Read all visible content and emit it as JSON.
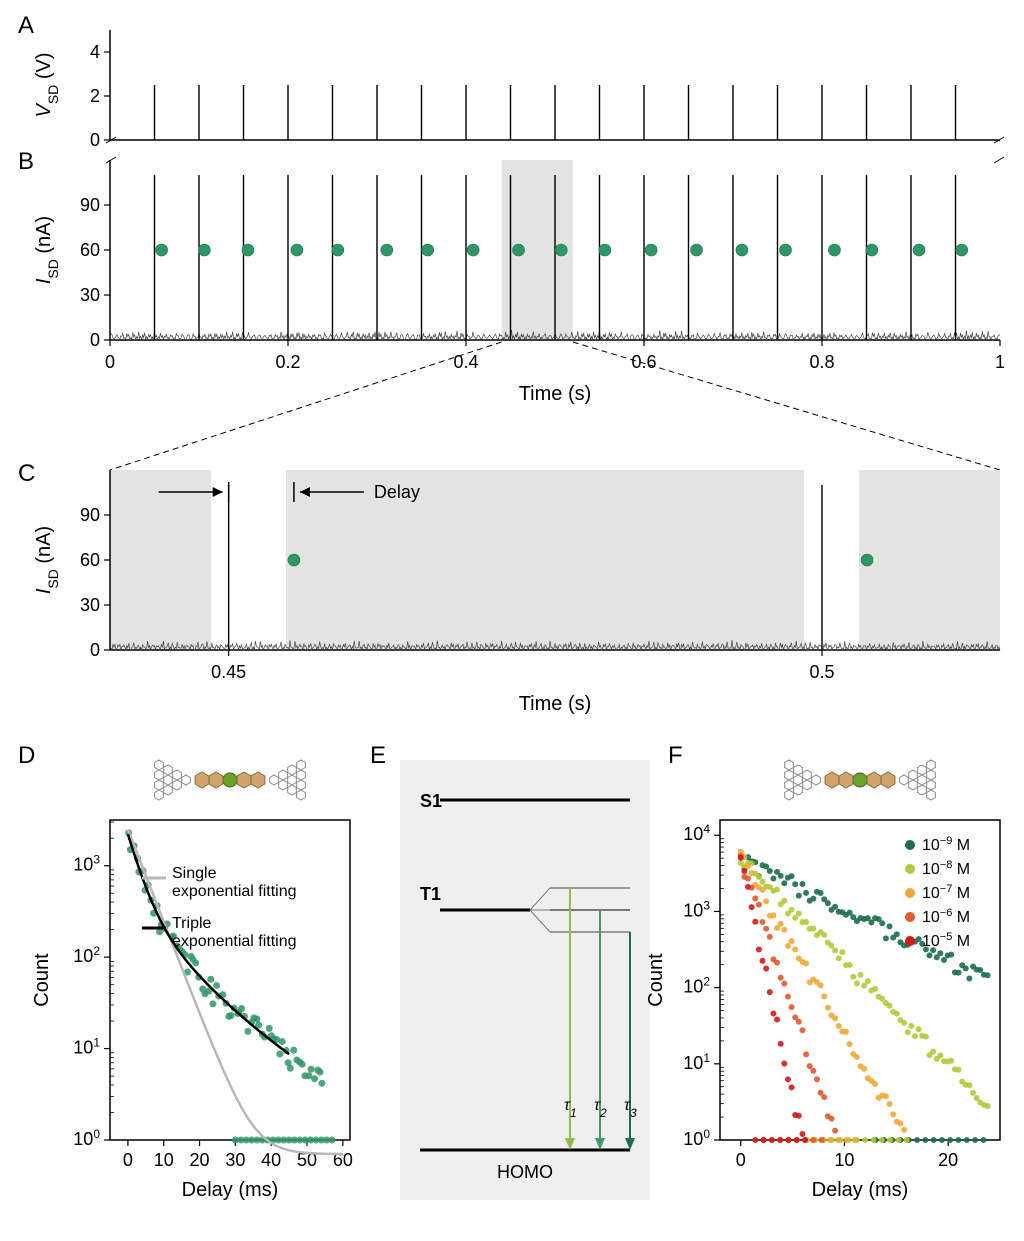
{
  "panels": {
    "A": {
      "label": "A"
    },
    "B": {
      "label": "B"
    },
    "C": {
      "label": "C"
    },
    "D": {
      "label": "D"
    },
    "E": {
      "label": "E"
    },
    "F": {
      "label": "F"
    }
  },
  "colors": {
    "background": "#ffffff",
    "axis": "#000000",
    "noise": "#444444",
    "green_dot": "#2f9767",
    "green_dot_stroke": "#1f7350",
    "highlight_band": "#e3e3e3",
    "panelE_bg": "#efefef",
    "single_fit": "#b8b8b8",
    "triple_fit": "#000000",
    "tau1": "#8fbf4a",
    "tau2": "#3f9a6a",
    "tau3": "#1a6e4a",
    "hex_tan": "#cfa36a",
    "hex_outline": "#888888",
    "hex_green": "#6aa32b",
    "series_1e9": "#1a6e4a",
    "series_1e8": "#b5c93a",
    "series_1e7": "#f0a83a",
    "series_1e6": "#e05a2a",
    "series_1e5": "#d11a1a"
  },
  "panelA": {
    "ylabel": "V",
    "ylabel_sub": "SD",
    "ylabel_unit": " (V)",
    "yticks": [
      0,
      2,
      4
    ],
    "pulse_times": [
      0.05,
      0.1,
      0.15,
      0.2,
      0.25,
      0.3,
      0.35,
      0.4,
      0.45,
      0.5,
      0.55,
      0.6,
      0.65,
      0.7,
      0.75,
      0.8,
      0.85,
      0.9,
      0.95
    ],
    "pulse_height": 2.5,
    "xlim": [
      0,
      1
    ]
  },
  "panelB": {
    "ylabel": "I",
    "ylabel_sub": "SD",
    "ylabel_unit": " (nA)",
    "yticks": [
      0,
      30,
      60,
      90
    ],
    "xlabel": "Time (s)",
    "xticks": [
      0,
      0.2,
      0.4,
      0.6,
      0.8,
      1
    ],
    "pulse_times": [
      0.05,
      0.1,
      0.15,
      0.2,
      0.25,
      0.3,
      0.35,
      0.4,
      0.45,
      0.5,
      0.55,
      0.6,
      0.65,
      0.7,
      0.75,
      0.8,
      0.85,
      0.9,
      0.95
    ],
    "pulse_height": 110,
    "green_dot_offsets": [
      0.008,
      0.006,
      0.005,
      0.01,
      0.006,
      0.011,
      0.007,
      0.008,
      0.009,
      0.007,
      0.006,
      0.008,
      0.009,
      0.01,
      0.009,
      0.014,
      0.006,
      0.009,
      0.007
    ],
    "green_dot_y": 60,
    "highlight_band": [
      0.44,
      0.52
    ],
    "noise_amp": 5,
    "xlim": [
      0,
      1
    ]
  },
  "panelC": {
    "ylabel": "I",
    "ylabel_sub": "SD",
    "ylabel_unit": " (nA)",
    "yticks": [
      0,
      30,
      60,
      90
    ],
    "xlabel": "Time (s)",
    "xticks": [
      0.45,
      0.5
    ],
    "xlim": [
      0.44,
      0.515
    ],
    "pulse_times": [
      0.45,
      0.5
    ],
    "pulse_height": 110,
    "green_dot_offsets": [
      0.0055,
      0.0038
    ],
    "green_dot_y": 60,
    "delay_label": "Delay",
    "noise_amp": 5,
    "gap_half_width": 0.0015
  },
  "panelD": {
    "ylabel": "Count",
    "xlabel": "Delay  (ms)",
    "xticks": [
      0,
      10,
      20,
      30,
      40,
      50,
      60
    ],
    "xlim": [
      -5,
      62
    ],
    "y_decades": [
      0,
      1,
      2,
      3
    ],
    "legend_single": "Single exponential fitting",
    "legend_triple": "Triple exponential fitting",
    "scatter_color": "#2f9767",
    "single_fit_params": {
      "A": 2500,
      "tau": 4.3
    },
    "triple_fit_params": [
      {
        "A": 1800,
        "tau": 3.0
      },
      {
        "A": 350,
        "tau": 9.0
      },
      {
        "A": 60,
        "tau": 20.0
      }
    ]
  },
  "panelE": {
    "labels": {
      "S1": "S1",
      "T1": "T1",
      "HOMO": "HOMO",
      "tau1": "τ",
      "tau2": "τ",
      "tau3": "τ"
    },
    "tau_subs": [
      "1",
      "2",
      "3"
    ]
  },
  "panelF": {
    "ylabel": "Count",
    "xlabel": "Delay  (ms)",
    "xticks": [
      0,
      10,
      20
    ],
    "xlim": [
      -2,
      25
    ],
    "y_decades": [
      0,
      1,
      2,
      3,
      4
    ],
    "legend": [
      {
        "label_base": "10",
        "exp": "−9",
        "unit": " M",
        "color": "#1a6e4a",
        "A": 5000,
        "tau": 6.5
      },
      {
        "label_base": "10",
        "exp": "−8",
        "unit": " M",
        "color": "#b5c93a",
        "A": 5000,
        "tau": 3.2
      },
      {
        "label_base": "10",
        "exp": "−7",
        "unit": " M",
        "color": "#f0a83a",
        "A": 5000,
        "tau": 1.9
      },
      {
        "label_base": "10",
        "exp": "−6",
        "unit": " M",
        "color": "#e05a2a",
        "A": 5000,
        "tau": 1.1
      },
      {
        "label_base": "10",
        "exp": "−5",
        "unit": " M",
        "color": "#d11a1a",
        "A": 5000,
        "tau": 0.7
      }
    ]
  },
  "fontsize": {
    "panel_label": 24,
    "axis_label": 20,
    "tick": 18,
    "legend": 16,
    "annotation": 18
  }
}
